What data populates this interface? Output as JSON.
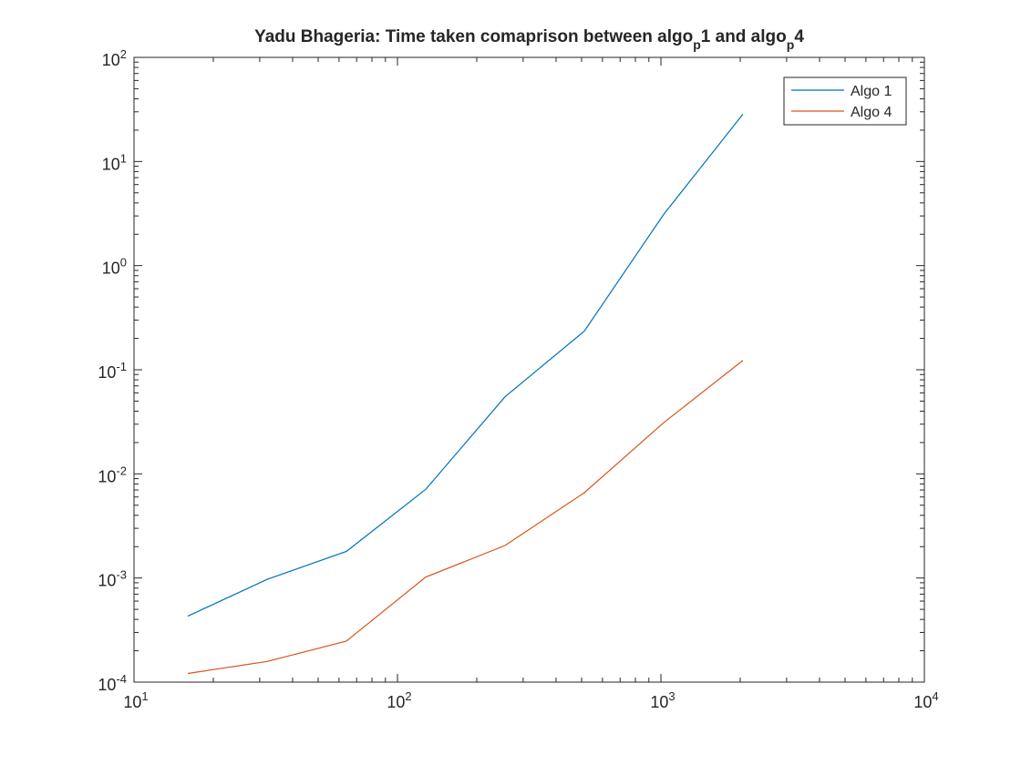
{
  "chart_data": {
    "type": "line",
    "title": {
      "parts": [
        {
          "text": "Yadu Bhageria: Time taken comaprison between algo",
          "sub": false
        },
        {
          "text": "p",
          "sub": true
        },
        {
          "text": "1 and algo",
          "sub": false
        },
        {
          "text": "p",
          "sub": true
        },
        {
          "text": "4",
          "sub": false
        }
      ]
    },
    "xlabel": "",
    "ylabel": "",
    "x_scale": "log",
    "y_scale": "log",
    "xlim": [
      10,
      10000
    ],
    "ylim": [
      0.0001,
      100
    ],
    "x_ticks": [
      {
        "value": 10,
        "base": "10",
        "exp": "1"
      },
      {
        "value": 100,
        "base": "10",
        "exp": "2"
      },
      {
        "value": 1000,
        "base": "10",
        "exp": "3"
      },
      {
        "value": 10000,
        "base": "10",
        "exp": "4"
      }
    ],
    "y_ticks": [
      {
        "value": 0.0001,
        "base": "10",
        "exp": "-4"
      },
      {
        "value": 0.001,
        "base": "10",
        "exp": "-3"
      },
      {
        "value": 0.01,
        "base": "10",
        "exp": "-2"
      },
      {
        "value": 0.1,
        "base": "10",
        "exp": "-1"
      },
      {
        "value": 1,
        "base": "10",
        "exp": "0"
      },
      {
        "value": 10,
        "base": "10",
        "exp": "1"
      },
      {
        "value": 100,
        "base": "10",
        "exp": "2"
      }
    ],
    "grid": false,
    "legend_position": "top-right",
    "series": [
      {
        "name": "Algo 1",
        "color": "#0072BD",
        "x": [
          16,
          32,
          64,
          128,
          256,
          512,
          1024,
          2048
        ],
        "y": [
          0.00043,
          0.00097,
          0.0018,
          0.0071,
          0.055,
          0.235,
          3.1,
          28.5
        ]
      },
      {
        "name": "Algo 4",
        "color": "#D95319",
        "x": [
          16,
          32,
          64,
          128,
          256,
          512,
          1024,
          2048
        ],
        "y": [
          0.000121,
          0.000158,
          0.000248,
          0.00102,
          0.00205,
          0.0066,
          0.031,
          0.123
        ]
      }
    ]
  }
}
